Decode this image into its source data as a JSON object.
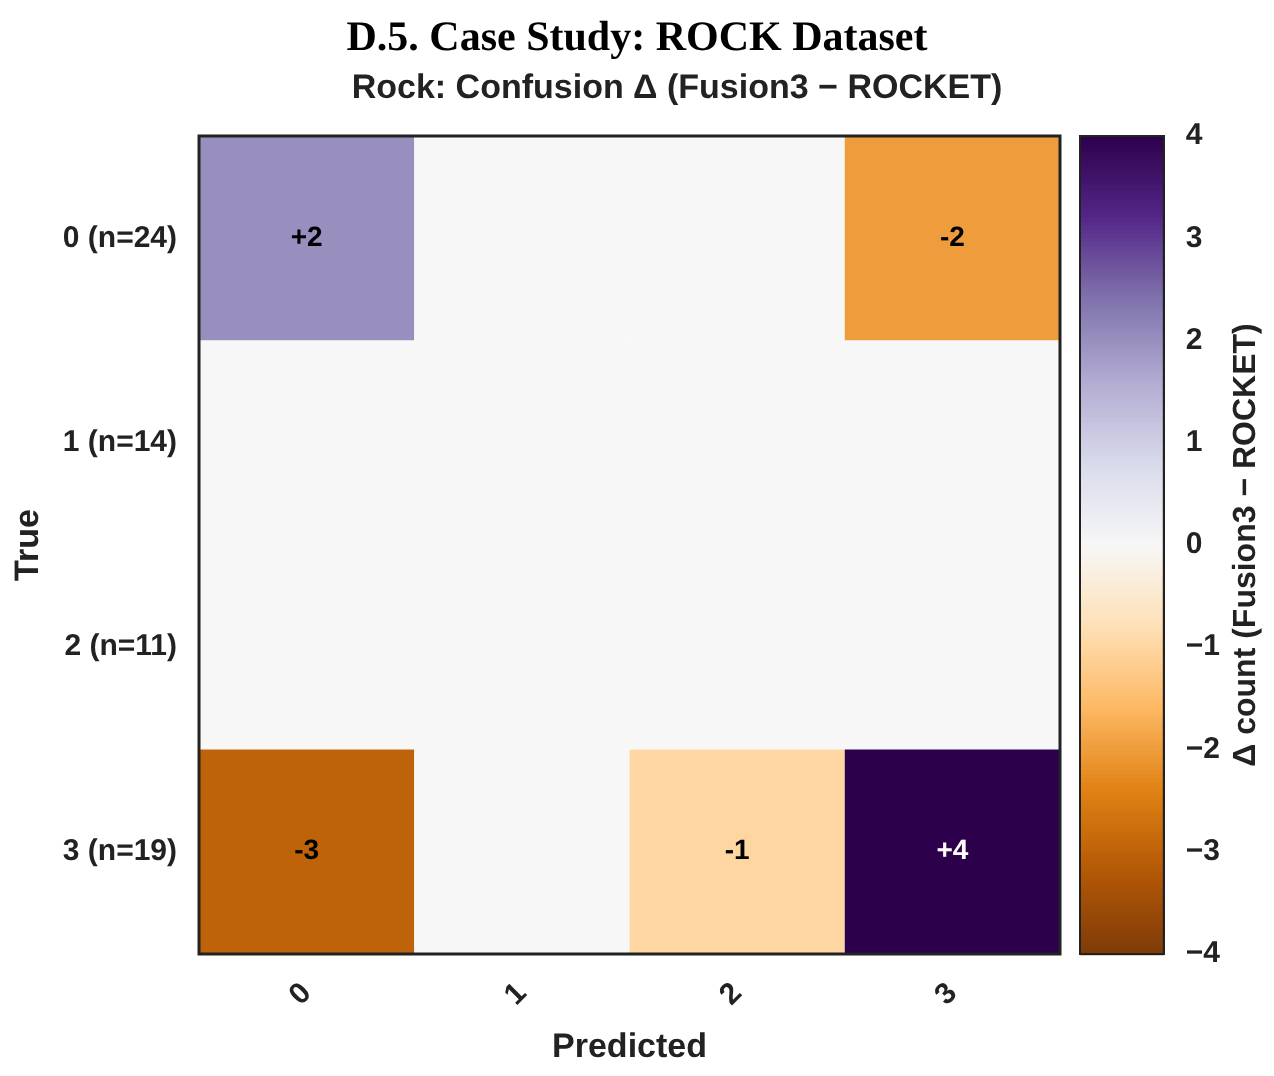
{
  "chart_data": {
    "type": "heatmap",
    "title": "D.5. Case Study: ROCK Dataset",
    "subtitle": "Rock: Confusion Δ (Fusion3 − ROCKET)",
    "xlabel": "Predicted",
    "ylabel": "True",
    "clabel": "Δ count (Fusion3 − ROCKET)",
    "categories": [
      "0",
      "1",
      "2",
      "3"
    ],
    "y_categories": [
      "0 (n=24)",
      "1 (n=14)",
      "2 (n=11)",
      "3 (n=19)"
    ],
    "cells": [
      [
        2,
        0,
        0,
        -2
      ],
      [
        0,
        0,
        0,
        0
      ],
      [
        0,
        0,
        0,
        0
      ],
      [
        -3,
        0,
        -1,
        4
      ]
    ],
    "cell_labels": [
      [
        "+2",
        null,
        null,
        "-2"
      ],
      [
        null,
        null,
        null,
        null
      ],
      [
        null,
        null,
        null,
        null
      ],
      [
        "-3",
        null,
        "-1",
        "+4"
      ]
    ],
    "clim": [
      -4,
      4
    ],
    "cticks": [
      {
        "value": -4,
        "label": "−4"
      },
      {
        "value": -3,
        "label": "−3"
      },
      {
        "value": -2,
        "label": "−2"
      },
      {
        "value": -1,
        "label": "−1"
      },
      0,
      1,
      2,
      3,
      4
    ]
  }
}
